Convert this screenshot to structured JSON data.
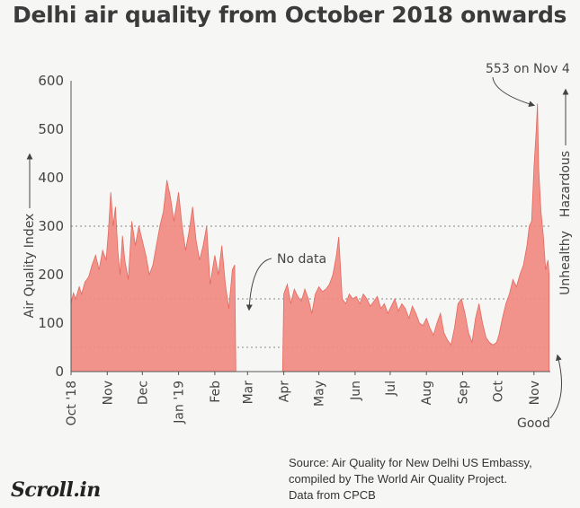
{
  "title": "Delhi air quality from October 2018 onwards",
  "source": "Source: Air Quality for New Delhi US Embassy,\ncompiled by The World Air Quality Project.\nData from CPCB",
  "logo": "Scroll.in",
  "colors": {
    "fill": "#f08a80",
    "stroke": "#e4685f",
    "grid": "#888888",
    "axis": "#555555"
  },
  "chart_data": {
    "type": "area",
    "title": "Delhi air quality from October 2018 onwards",
    "xlabel": "",
    "ylabel": "Air Quality Index",
    "ylim": [
      0,
      600
    ],
    "yticks": [
      0,
      100,
      200,
      300,
      400,
      500,
      600
    ],
    "xticks": [
      "Oct '18",
      "Nov",
      "Dec",
      "Jan '19",
      "Feb",
      "Mar",
      "Apr",
      "May",
      "Jun",
      "Jul",
      "Aug",
      "Sep",
      "Oct",
      "Nov"
    ],
    "reference_lines": [
      {
        "value": 300,
        "label": "Hazardous"
      },
      {
        "value": 150,
        "label": "Unhealthy"
      },
      {
        "value": 50,
        "label": "Good"
      }
    ],
    "annotations": [
      {
        "text": "553 on Nov 4",
        "x": "2019-11-04",
        "y": 553
      },
      {
        "text": "No data",
        "x": "2019-03-01"
      }
    ],
    "series": [
      {
        "name": "",
        "points": [
          [
            "2018-10-01",
            140
          ],
          [
            "2018-10-03",
            162
          ],
          [
            "2018-10-05",
            150
          ],
          [
            "2018-10-08",
            175
          ],
          [
            "2018-10-10",
            160
          ],
          [
            "2018-10-13",
            185
          ],
          [
            "2018-10-16",
            195
          ],
          [
            "2018-10-19",
            220
          ],
          [
            "2018-10-22",
            240
          ],
          [
            "2018-10-25",
            210
          ],
          [
            "2018-10-28",
            250
          ],
          [
            "2018-10-31",
            230
          ],
          [
            "2018-11-02",
            290
          ],
          [
            "2018-11-04",
            370
          ],
          [
            "2018-11-06",
            300
          ],
          [
            "2018-11-08",
            340
          ],
          [
            "2018-11-10",
            250
          ],
          [
            "2018-11-12",
            200
          ],
          [
            "2018-11-14",
            280
          ],
          [
            "2018-11-16",
            230
          ],
          [
            "2018-11-19",
            190
          ],
          [
            "2018-11-22",
            310
          ],
          [
            "2018-11-25",
            260
          ],
          [
            "2018-11-28",
            300
          ],
          [
            "2018-12-01",
            270
          ],
          [
            "2018-12-04",
            240
          ],
          [
            "2018-12-07",
            200
          ],
          [
            "2018-12-10",
            220
          ],
          [
            "2018-12-13",
            260
          ],
          [
            "2018-12-16",
            300
          ],
          [
            "2018-12-19",
            330
          ],
          [
            "2018-12-22",
            395
          ],
          [
            "2018-12-25",
            360
          ],
          [
            "2018-12-28",
            310
          ],
          [
            "2019-01-01",
            370
          ],
          [
            "2019-01-04",
            300
          ],
          [
            "2019-01-07",
            250
          ],
          [
            "2019-01-10",
            290
          ],
          [
            "2019-01-13",
            340
          ],
          [
            "2019-01-16",
            270
          ],
          [
            "2019-01-19",
            230
          ],
          [
            "2019-01-22",
            260
          ],
          [
            "2019-01-25",
            300
          ],
          [
            "2019-01-28",
            180
          ],
          [
            "2019-02-01",
            240
          ],
          [
            "2019-02-04",
            200
          ],
          [
            "2019-02-07",
            260
          ],
          [
            "2019-02-10",
            180
          ],
          [
            "2019-02-13",
            130
          ],
          [
            "2019-02-16",
            210
          ],
          [
            "2019-02-18",
            220
          ],
          [
            "2019-02-19",
            0
          ],
          [
            "2019-03-31",
            0
          ],
          [
            "2019-04-01",
            160
          ],
          [
            "2019-04-04",
            180
          ],
          [
            "2019-04-07",
            140
          ],
          [
            "2019-04-10",
            170
          ],
          [
            "2019-04-13",
            155
          ],
          [
            "2019-04-16",
            145
          ],
          [
            "2019-04-19",
            170
          ],
          [
            "2019-04-22",
            150
          ],
          [
            "2019-04-25",
            120
          ],
          [
            "2019-04-28",
            160
          ],
          [
            "2019-05-01",
            175
          ],
          [
            "2019-05-04",
            165
          ],
          [
            "2019-05-07",
            170
          ],
          [
            "2019-05-10",
            180
          ],
          [
            "2019-05-13",
            200
          ],
          [
            "2019-05-16",
            240
          ],
          [
            "2019-05-18",
            278
          ],
          [
            "2019-05-21",
            150
          ],
          [
            "2019-05-24",
            140
          ],
          [
            "2019-05-27",
            160
          ],
          [
            "2019-05-30",
            150
          ],
          [
            "2019-06-02",
            155
          ],
          [
            "2019-06-05",
            140
          ],
          [
            "2019-06-08",
            160
          ],
          [
            "2019-06-11",
            150
          ],
          [
            "2019-06-14",
            135
          ],
          [
            "2019-06-17",
            145
          ],
          [
            "2019-06-20",
            155
          ],
          [
            "2019-06-23",
            130
          ],
          [
            "2019-06-26",
            140
          ],
          [
            "2019-06-29",
            120
          ],
          [
            "2019-07-02",
            135
          ],
          [
            "2019-07-05",
            150
          ],
          [
            "2019-07-08",
            125
          ],
          [
            "2019-07-11",
            140
          ],
          [
            "2019-07-14",
            130
          ],
          [
            "2019-07-17",
            110
          ],
          [
            "2019-07-20",
            135
          ],
          [
            "2019-07-23",
            120
          ],
          [
            "2019-07-26",
            100
          ],
          [
            "2019-07-29",
            95
          ],
          [
            "2019-08-01",
            110
          ],
          [
            "2019-08-04",
            90
          ],
          [
            "2019-08-07",
            75
          ],
          [
            "2019-08-10",
            100
          ],
          [
            "2019-08-13",
            120
          ],
          [
            "2019-08-16",
            80
          ],
          [
            "2019-08-19",
            65
          ],
          [
            "2019-08-22",
            55
          ],
          [
            "2019-08-25",
            90
          ],
          [
            "2019-08-28",
            140
          ],
          [
            "2019-08-31",
            150
          ],
          [
            "2019-09-03",
            120
          ],
          [
            "2019-09-06",
            80
          ],
          [
            "2019-09-09",
            60
          ],
          [
            "2019-09-12",
            110
          ],
          [
            "2019-09-15",
            140
          ],
          [
            "2019-09-18",
            100
          ],
          [
            "2019-09-21",
            70
          ],
          [
            "2019-09-24",
            60
          ],
          [
            "2019-09-27",
            55
          ],
          [
            "2019-09-30",
            60
          ],
          [
            "2019-10-02",
            75
          ],
          [
            "2019-10-05",
            110
          ],
          [
            "2019-10-08",
            140
          ],
          [
            "2019-10-11",
            160
          ],
          [
            "2019-10-14",
            190
          ],
          [
            "2019-10-17",
            175
          ],
          [
            "2019-10-20",
            200
          ],
          [
            "2019-10-23",
            220
          ],
          [
            "2019-10-26",
            260
          ],
          [
            "2019-10-28",
            300
          ],
          [
            "2019-10-30",
            310
          ],
          [
            "2019-11-01",
            420
          ],
          [
            "2019-11-03",
            500
          ],
          [
            "2019-11-04",
            553
          ],
          [
            "2019-11-05",
            420
          ],
          [
            "2019-11-07",
            330
          ],
          [
            "2019-11-09",
            280
          ],
          [
            "2019-11-11",
            210
          ],
          [
            "2019-11-13",
            230
          ],
          [
            "2019-11-14",
            200
          ]
        ]
      }
    ]
  }
}
